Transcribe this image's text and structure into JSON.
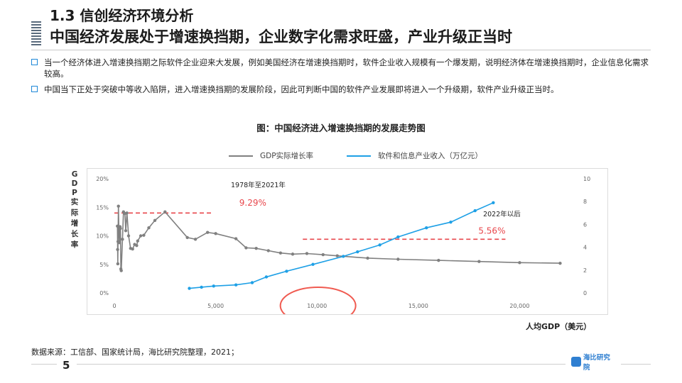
{
  "header": {
    "title": "1.3 信创经济环境分析",
    "subtitle": "中国经济发展处于增速换挡期，企业数字化需求旺盛，产业升级正当时"
  },
  "bullets": [
    "当一个经济体进入增速换挡期之际软件企业迎来大发展，例如美国经济在增速换挡期时，软件企业收入规模有一个爆发期，说明经济体在增速换挡期时，企业信息化需求较高。",
    "中国当下正处于突破中等收入陷阱，进入增速换挡期的发展阶段，因此可判断中国的软件产业发展即将进入一个升级期，软件产业升级正当时。"
  ],
  "chart_title": "图：中国经济进入增速换挡期的发展走势图",
  "source": "数据来源：工信部、国家统计局，海比研究院整理，2021；",
  "page_number": "5",
  "logo": {
    "text": "海比研究院",
    "color": "#2f7fd1"
  },
  "chart_data": {
    "type": "line",
    "xlabel": "人均GDP（美元）",
    "ylabel": "GDP实际增长率",
    "xlim": [
      0,
      23000
    ],
    "y_left_lim": [
      0,
      20
    ],
    "y_right_lim": [
      0,
      10
    ],
    "x_ticks": [
      "0",
      "5,000",
      "10,000",
      "15,000",
      "20,000"
    ],
    "x_tick_values": [
      0,
      5000,
      10000,
      15000,
      20000
    ],
    "y_left_ticks": [
      "0%",
      "5%",
      "10%",
      "15%",
      "20%"
    ],
    "y_left_tick_values": [
      0,
      5,
      10,
      15,
      20
    ],
    "y_right_ticks": [
      "0",
      "2",
      "4",
      "6",
      "8",
      "10"
    ],
    "y_right_tick_values": [
      0,
      2,
      4,
      6,
      8,
      10
    ],
    "series": [
      {
        "name": "GDP实际增长率",
        "axis": "left",
        "color": "#808080",
        "points": [
          [
            150,
            11.7
          ],
          [
            160,
            7.6
          ],
          [
            170,
            5.1
          ],
          [
            180,
            9.0
          ],
          [
            200,
            15.2
          ],
          [
            220,
            11.0
          ],
          [
            250,
            8.8
          ],
          [
            280,
            11.6
          ],
          [
            300,
            11.3
          ],
          [
            320,
            4.2
          ],
          [
            340,
            3.9
          ],
          [
            400,
            9.4
          ],
          [
            450,
            14.2
          ],
          [
            520,
            13.9
          ],
          [
            560,
            10.9
          ],
          [
            620,
            14.0
          ],
          [
            700,
            10.0
          ],
          [
            800,
            7.8
          ],
          [
            900,
            7.7
          ],
          [
            1000,
            8.5
          ],
          [
            1100,
            8.3
          ],
          [
            1150,
            9.1
          ],
          [
            1300,
            10.0
          ],
          [
            1450,
            10.1
          ],
          [
            1700,
            11.4
          ],
          [
            2000,
            12.7
          ],
          [
            2500,
            14.2
          ],
          [
            3600,
            9.7
          ],
          [
            4000,
            9.4
          ],
          [
            4600,
            10.6
          ],
          [
            5000,
            10.4
          ],
          [
            6000,
            9.5
          ],
          [
            6500,
            7.9
          ],
          [
            7000,
            7.8
          ],
          [
            7600,
            7.4
          ],
          [
            8200,
            7.0
          ],
          [
            8800,
            6.8
          ],
          [
            9500,
            6.9
          ],
          [
            10300,
            6.7
          ],
          [
            11000,
            6.5
          ],
          [
            12500,
            6.1
          ],
          [
            14000,
            5.9
          ],
          [
            16000,
            5.7
          ],
          [
            18000,
            5.5
          ],
          [
            20000,
            5.3
          ],
          [
            22000,
            5.2
          ]
        ]
      },
      {
        "name": "软件和信息产业收入（万亿元）",
        "axis": "right",
        "color": "#1ea0e6",
        "points": [
          [
            3700,
            0.4
          ],
          [
            4300,
            0.5
          ],
          [
            4900,
            0.6
          ],
          [
            6000,
            0.7
          ],
          [
            6800,
            0.9
          ],
          [
            7500,
            1.4
          ],
          [
            8500,
            1.9
          ],
          [
            9800,
            2.5
          ],
          [
            11300,
            3.2
          ],
          [
            12000,
            3.6
          ],
          [
            13100,
            4.2
          ],
          [
            14000,
            4.9
          ],
          [
            15400,
            5.7
          ],
          [
            16600,
            6.2
          ],
          [
            17800,
            7.2
          ],
          [
            18700,
            7.9
          ]
        ]
      }
    ],
    "reference_lines": [
      {
        "label": "9.29%",
        "y": 14,
        "x_from": 0,
        "x_to": 4800,
        "color": "#e8474c"
      },
      {
        "label": "5.56%",
        "y": 9.4,
        "x_from": 9300,
        "x_to": 19300,
        "color": "#e8474c"
      }
    ],
    "annotations": [
      {
        "text": "1978年至2021年"
      },
      {
        "text": "2022年以后"
      }
    ],
    "highlight": {
      "shape": "ellipse",
      "color": "#f05a50"
    },
    "grid": false,
    "legend_position": "top-center"
  }
}
